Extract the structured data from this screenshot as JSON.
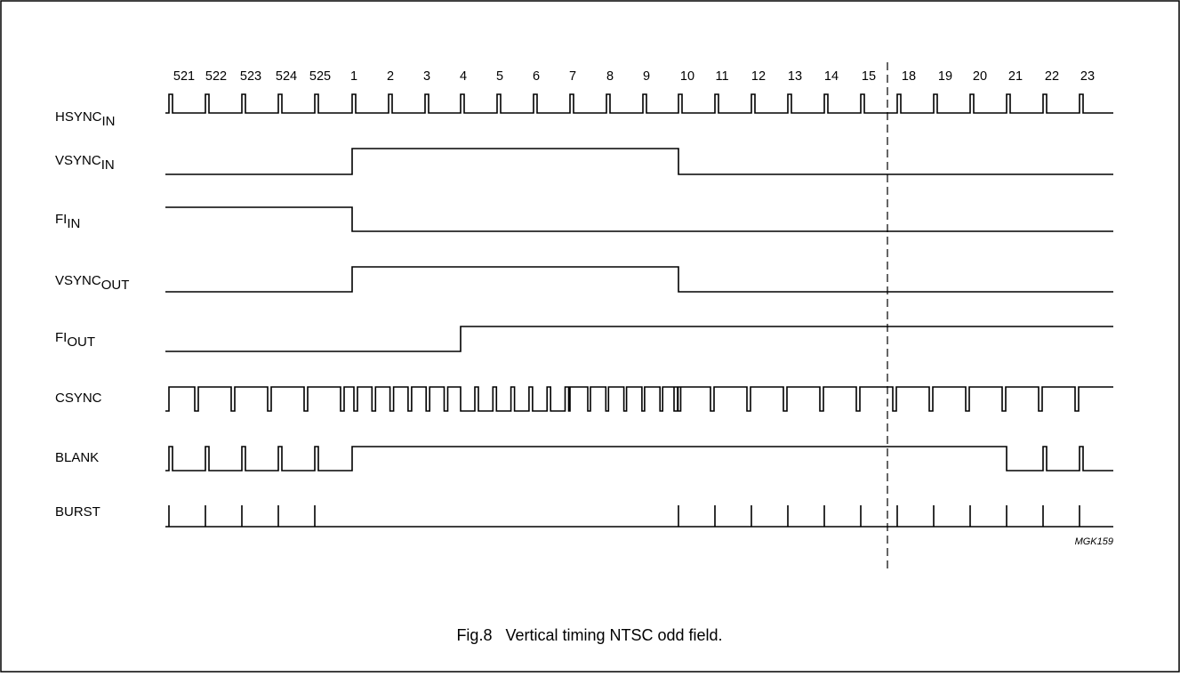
{
  "line_numbers": [
    "521",
    "522",
    "523",
    "524",
    "525",
    "1",
    "2",
    "3",
    "4",
    "5",
    "6",
    "7",
    "8",
    "9",
    "10",
    "11",
    "12",
    "13",
    "14",
    "15",
    "18",
    "19",
    "20",
    "21",
    "22",
    "23"
  ],
  "signals": [
    {
      "key": "hsync_in",
      "base": "HSYNC",
      "sub": "IN"
    },
    {
      "key": "vsync_in",
      "base": "VSYNC",
      "sub": "IN"
    },
    {
      "key": "fi_in",
      "base": "FI",
      "sub": "IN"
    },
    {
      "key": "vsync_out",
      "base": "VSYNC",
      "sub": "OUT"
    },
    {
      "key": "fi_out",
      "base": "FI",
      "sub": "OUT"
    },
    {
      "key": "csync",
      "base": "CSYNC",
      "sub": ""
    },
    {
      "key": "blank",
      "base": "BLANK",
      "sub": ""
    },
    {
      "key": "burst",
      "base": "BURST",
      "sub": ""
    }
  ],
  "figure_code": "MGK159",
  "caption": "Fig.8   Vertical timing NTSC odd field."
}
